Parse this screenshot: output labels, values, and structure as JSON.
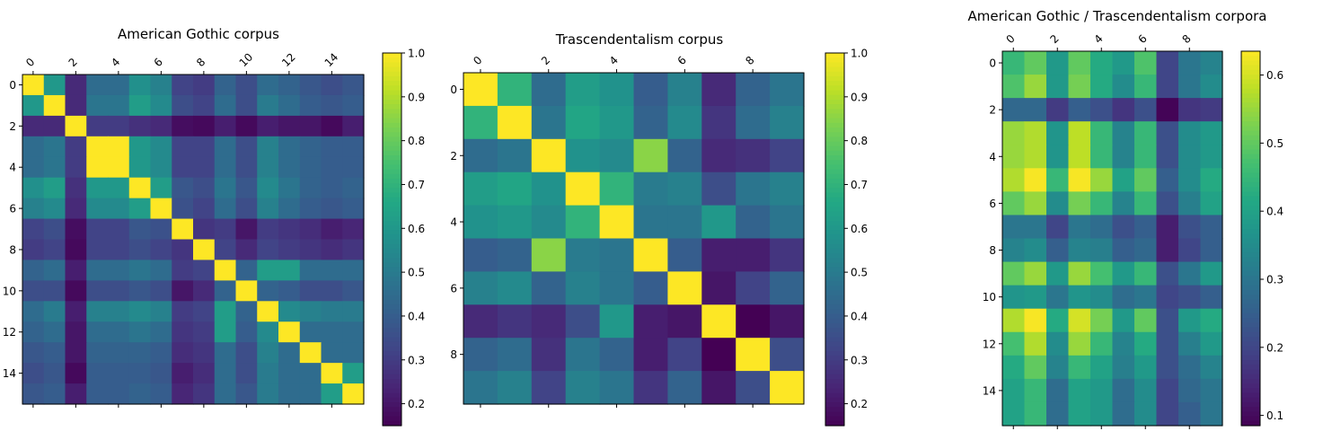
{
  "colormap": "viridis",
  "chart_data": [
    {
      "type": "heatmap",
      "title": "American Gothic corpus",
      "n": 16,
      "x_ticks": [
        "0",
        "2",
        "4",
        "6",
        "8",
        "10",
        "12",
        "14"
      ],
      "y_ticks": [
        "0",
        "2",
        "4",
        "6",
        "8",
        "10",
        "12",
        "14"
      ],
      "colorbar": {
        "min": 0.15,
        "max": 1.0,
        "ticks": [
          "0.2",
          "0.3",
          "0.4",
          "0.5",
          "0.6",
          "0.7",
          "0.8",
          "0.9",
          "1.0"
        ]
      },
      "values": [
        [
          1.0,
          0.6,
          0.25,
          0.45,
          0.45,
          0.57,
          0.52,
          0.32,
          0.3,
          0.42,
          0.35,
          0.45,
          0.42,
          0.38,
          0.35,
          0.38
        ],
        [
          0.6,
          1.0,
          0.25,
          0.48,
          0.48,
          0.62,
          0.55,
          0.35,
          0.32,
          0.45,
          0.35,
          0.5,
          0.45,
          0.4,
          0.38,
          0.4
        ],
        [
          0.25,
          0.25,
          1.0,
          0.3,
          0.3,
          0.27,
          0.25,
          0.18,
          0.17,
          0.22,
          0.17,
          0.22,
          0.2,
          0.2,
          0.17,
          0.22
        ],
        [
          0.45,
          0.48,
          0.3,
          1.0,
          1.0,
          0.6,
          0.55,
          0.32,
          0.32,
          0.45,
          0.35,
          0.52,
          0.45,
          0.42,
          0.4,
          0.4
        ],
        [
          0.45,
          0.48,
          0.3,
          1.0,
          1.0,
          0.6,
          0.55,
          0.32,
          0.32,
          0.45,
          0.35,
          0.52,
          0.45,
          0.42,
          0.4,
          0.4
        ],
        [
          0.57,
          0.62,
          0.27,
          0.6,
          0.6,
          1.0,
          0.62,
          0.38,
          0.35,
          0.48,
          0.38,
          0.55,
          0.48,
          0.42,
          0.4,
          0.42
        ],
        [
          0.52,
          0.55,
          0.25,
          0.55,
          0.55,
          0.62,
          1.0,
          0.36,
          0.32,
          0.45,
          0.35,
          0.52,
          0.45,
          0.4,
          0.38,
          0.4
        ],
        [
          0.32,
          0.35,
          0.18,
          0.32,
          0.32,
          0.38,
          0.36,
          1.0,
          0.28,
          0.3,
          0.2,
          0.3,
          0.28,
          0.26,
          0.22,
          0.24
        ],
        [
          0.3,
          0.32,
          0.17,
          0.32,
          0.32,
          0.35,
          0.32,
          0.28,
          1.0,
          0.32,
          0.25,
          0.32,
          0.3,
          0.28,
          0.26,
          0.28
        ],
        [
          0.42,
          0.45,
          0.22,
          0.45,
          0.45,
          0.48,
          0.45,
          0.3,
          0.32,
          1.0,
          0.42,
          0.62,
          0.62,
          0.45,
          0.45,
          0.45
        ],
        [
          0.35,
          0.35,
          0.17,
          0.35,
          0.35,
          0.38,
          0.35,
          0.2,
          0.25,
          0.42,
          1.0,
          0.42,
          0.4,
          0.35,
          0.35,
          0.38
        ],
        [
          0.45,
          0.5,
          0.22,
          0.52,
          0.52,
          0.55,
          0.52,
          0.3,
          0.32,
          0.62,
          0.42,
          1.0,
          0.55,
          0.52,
          0.5,
          0.5
        ],
        [
          0.42,
          0.45,
          0.2,
          0.45,
          0.45,
          0.48,
          0.45,
          0.28,
          0.3,
          0.62,
          0.4,
          0.55,
          1.0,
          0.45,
          0.45,
          0.45
        ],
        [
          0.38,
          0.4,
          0.2,
          0.42,
          0.42,
          0.42,
          0.4,
          0.26,
          0.28,
          0.45,
          0.35,
          0.52,
          0.45,
          1.0,
          0.45,
          0.45
        ],
        [
          0.35,
          0.38,
          0.17,
          0.4,
          0.4,
          0.4,
          0.38,
          0.22,
          0.26,
          0.45,
          0.35,
          0.5,
          0.45,
          0.45,
          1.0,
          0.62
        ],
        [
          0.38,
          0.4,
          0.22,
          0.4,
          0.4,
          0.42,
          0.4,
          0.24,
          0.28,
          0.45,
          0.38,
          0.5,
          0.45,
          0.45,
          0.62,
          1.0
        ]
      ]
    },
    {
      "type": "heatmap",
      "title": "Trascendentalism corpus",
      "n": 10,
      "x_ticks": [
        "0",
        "2",
        "4",
        "6",
        "8"
      ],
      "y_ticks": [
        "0",
        "2",
        "4",
        "6",
        "8"
      ],
      "colorbar": {
        "min": 0.15,
        "max": 1.0,
        "ticks": [
          "0.2",
          "0.3",
          "0.4",
          "0.5",
          "0.6",
          "0.7",
          "0.8",
          "0.9",
          "1.0"
        ]
      },
      "values": [
        [
          1.0,
          0.7,
          0.45,
          0.62,
          0.58,
          0.4,
          0.52,
          0.25,
          0.42,
          0.48
        ],
        [
          0.7,
          1.0,
          0.48,
          0.65,
          0.6,
          0.42,
          0.55,
          0.28,
          0.45,
          0.52
        ],
        [
          0.45,
          0.48,
          1.0,
          0.58,
          0.55,
          0.85,
          0.42,
          0.25,
          0.27,
          0.32
        ],
        [
          0.62,
          0.65,
          0.58,
          1.0,
          0.7,
          0.5,
          0.52,
          0.35,
          0.48,
          0.52
        ],
        [
          0.58,
          0.6,
          0.55,
          0.7,
          1.0,
          0.48,
          0.48,
          0.6,
          0.42,
          0.48
        ],
        [
          0.4,
          0.42,
          0.85,
          0.5,
          0.48,
          1.0,
          0.4,
          0.22,
          0.22,
          0.28
        ],
        [
          0.52,
          0.55,
          0.42,
          0.52,
          0.48,
          0.4,
          1.0,
          0.2,
          0.32,
          0.42
        ],
        [
          0.25,
          0.28,
          0.25,
          0.35,
          0.6,
          0.22,
          0.2,
          1.0,
          0.15,
          0.2
        ],
        [
          0.42,
          0.45,
          0.27,
          0.48,
          0.42,
          0.22,
          0.32,
          0.15,
          1.0,
          0.35
        ],
        [
          0.48,
          0.52,
          0.32,
          0.52,
          0.48,
          0.28,
          0.42,
          0.2,
          0.35,
          1.0
        ]
      ]
    },
    {
      "type": "heatmap",
      "title": "American Gothic / Trascendentalism corpora",
      "rows": 16,
      "cols": 10,
      "x_ticks": [
        "0",
        "2",
        "4",
        "6",
        "8"
      ],
      "y_ticks": [
        "0",
        "2",
        "4",
        "6",
        "8",
        "10",
        "12",
        "14"
      ],
      "colorbar": {
        "min": 0.085,
        "max": 0.635,
        "ticks": [
          "0.1",
          "0.2",
          "0.3",
          "0.4",
          "0.5",
          "0.6"
        ]
      },
      "values": [
        [
          0.45,
          0.5,
          0.38,
          0.5,
          0.42,
          0.38,
          0.48,
          0.2,
          0.3,
          0.33
        ],
        [
          0.48,
          0.55,
          0.38,
          0.52,
          0.42,
          0.35,
          0.45,
          0.2,
          0.3,
          0.35
        ],
        [
          0.27,
          0.27,
          0.18,
          0.25,
          0.22,
          0.17,
          0.22,
          0.09,
          0.17,
          0.18
        ],
        [
          0.55,
          0.57,
          0.37,
          0.58,
          0.45,
          0.33,
          0.45,
          0.22,
          0.35,
          0.38
        ],
        [
          0.55,
          0.57,
          0.37,
          0.58,
          0.45,
          0.33,
          0.45,
          0.22,
          0.35,
          0.38
        ],
        [
          0.57,
          0.63,
          0.45,
          0.63,
          0.55,
          0.4,
          0.5,
          0.25,
          0.35,
          0.42
        ],
        [
          0.5,
          0.55,
          0.35,
          0.52,
          0.45,
          0.33,
          0.45,
          0.22,
          0.32,
          0.4
        ],
        [
          0.3,
          0.3,
          0.2,
          0.3,
          0.28,
          0.22,
          0.25,
          0.13,
          0.22,
          0.25
        ],
        [
          0.33,
          0.35,
          0.25,
          0.33,
          0.32,
          0.25,
          0.27,
          0.13,
          0.2,
          0.25
        ],
        [
          0.5,
          0.55,
          0.38,
          0.55,
          0.47,
          0.38,
          0.45,
          0.22,
          0.3,
          0.38
        ],
        [
          0.37,
          0.38,
          0.3,
          0.37,
          0.35,
          0.28,
          0.3,
          0.2,
          0.22,
          0.25
        ],
        [
          0.57,
          0.63,
          0.42,
          0.6,
          0.52,
          0.38,
          0.5,
          0.22,
          0.38,
          0.42
        ],
        [
          0.47,
          0.57,
          0.35,
          0.55,
          0.45,
          0.33,
          0.42,
          0.22,
          0.32,
          0.38
        ],
        [
          0.42,
          0.5,
          0.33,
          0.45,
          0.4,
          0.32,
          0.38,
          0.22,
          0.28,
          0.33
        ],
        [
          0.4,
          0.45,
          0.28,
          0.4,
          0.38,
          0.28,
          0.35,
          0.2,
          0.27,
          0.3
        ],
        [
          0.4,
          0.45,
          0.28,
          0.4,
          0.38,
          0.28,
          0.35,
          0.2,
          0.25,
          0.3
        ]
      ]
    }
  ]
}
